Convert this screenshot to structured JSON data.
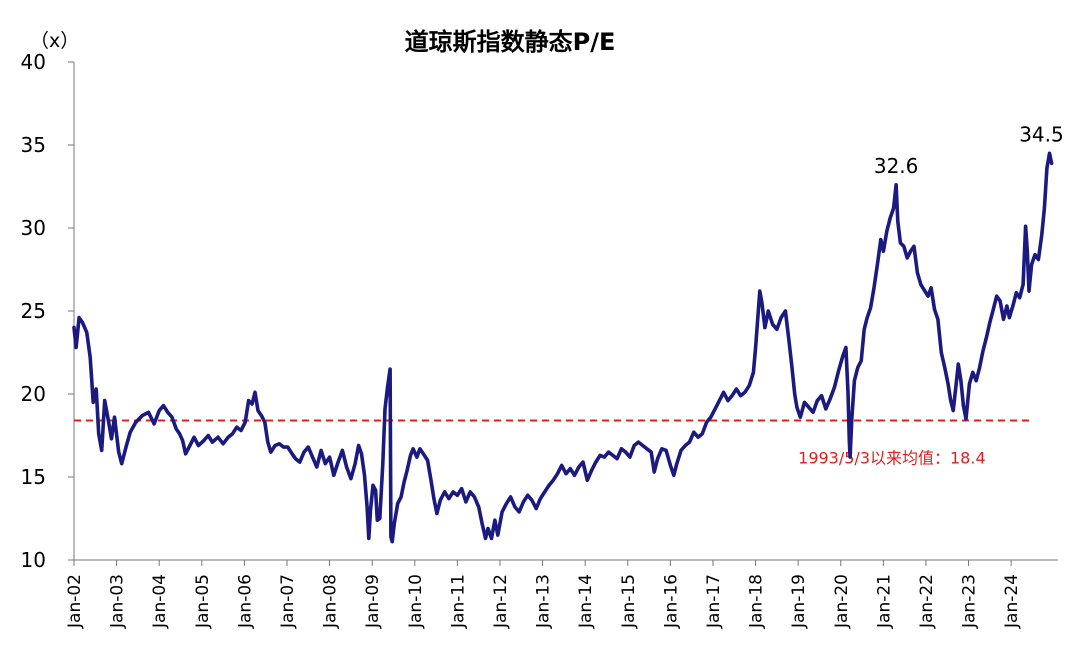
{
  "chart_data": {
    "type": "line",
    "title": "道琼斯指数静态P/E",
    "unit_label": "（x）",
    "ylim": [
      10,
      40
    ],
    "yticks": [
      10,
      15,
      20,
      25,
      30,
      35,
      40
    ],
    "x_tick_labels": [
      "Jan-02",
      "Jan-03",
      "Jan-04",
      "Jan-05",
      "Jan-06",
      "Jan-07",
      "Jan-08",
      "Jan-09",
      "Jan-10",
      "Jan-11",
      "Jan-12",
      "Jan-13",
      "Jan-14",
      "Jan-15",
      "Jan-16",
      "Jan-17",
      "Jan-18",
      "Jan-19",
      "Jan-20",
      "Jan-21",
      "Jan-22",
      "Jan-23",
      "Jan-24"
    ],
    "x_start_year": 2002,
    "x_end_year": 2024.95,
    "line_color": "#1a1a80",
    "mean_line_color": "#e02020",
    "mean_value": 18.4,
    "mean_label": "1993/5/3以来均值：18.4",
    "series": [
      {
        "points": [
          [
            2002.0,
            24.0
          ],
          [
            2002.05,
            22.8
          ],
          [
            2002.12,
            24.6
          ],
          [
            2002.2,
            24.3
          ],
          [
            2002.3,
            23.7
          ],
          [
            2002.38,
            22.2
          ],
          [
            2002.45,
            19.5
          ],
          [
            2002.52,
            20.3
          ],
          [
            2002.58,
            17.6
          ],
          [
            2002.65,
            16.6
          ],
          [
            2002.72,
            19.6
          ],
          [
            2002.8,
            18.5
          ],
          [
            2002.88,
            17.3
          ],
          [
            2002.95,
            18.6
          ],
          [
            2003.05,
            16.5
          ],
          [
            2003.12,
            15.8
          ],
          [
            2003.22,
            16.8
          ],
          [
            2003.32,
            17.7
          ],
          [
            2003.45,
            18.3
          ],
          [
            2003.6,
            18.7
          ],
          [
            2003.75,
            18.9
          ],
          [
            2003.88,
            18.2
          ],
          [
            2004.0,
            19.0
          ],
          [
            2004.1,
            19.3
          ],
          [
            2004.2,
            18.9
          ],
          [
            2004.3,
            18.6
          ],
          [
            2004.4,
            17.9
          ],
          [
            2004.48,
            17.6
          ],
          [
            2004.55,
            17.2
          ],
          [
            2004.62,
            16.4
          ],
          [
            2004.72,
            16.9
          ],
          [
            2004.82,
            17.4
          ],
          [
            2004.92,
            16.9
          ],
          [
            2005.05,
            17.2
          ],
          [
            2005.15,
            17.5
          ],
          [
            2005.25,
            17.1
          ],
          [
            2005.38,
            17.4
          ],
          [
            2005.5,
            17.0
          ],
          [
            2005.62,
            17.4
          ],
          [
            2005.72,
            17.6
          ],
          [
            2005.82,
            18.0
          ],
          [
            2005.92,
            17.8
          ],
          [
            2006.02,
            18.3
          ],
          [
            2006.1,
            19.6
          ],
          [
            2006.18,
            19.4
          ],
          [
            2006.25,
            20.1
          ],
          [
            2006.32,
            19.0
          ],
          [
            2006.4,
            18.7
          ],
          [
            2006.48,
            18.3
          ],
          [
            2006.55,
            17.1
          ],
          [
            2006.62,
            16.5
          ],
          [
            2006.72,
            16.9
          ],
          [
            2006.82,
            17.0
          ],
          [
            2006.92,
            16.8
          ],
          [
            2007.02,
            16.8
          ],
          [
            2007.12,
            16.4
          ],
          [
            2007.2,
            16.1
          ],
          [
            2007.3,
            15.9
          ],
          [
            2007.4,
            16.5
          ],
          [
            2007.5,
            16.8
          ],
          [
            2007.6,
            16.2
          ],
          [
            2007.7,
            15.6
          ],
          [
            2007.8,
            16.6
          ],
          [
            2007.9,
            15.8
          ],
          [
            2008.0,
            16.2
          ],
          [
            2008.1,
            15.1
          ],
          [
            2008.2,
            15.9
          ],
          [
            2008.3,
            16.6
          ],
          [
            2008.4,
            15.6
          ],
          [
            2008.5,
            14.9
          ],
          [
            2008.6,
            15.8
          ],
          [
            2008.68,
            16.9
          ],
          [
            2008.75,
            16.4
          ],
          [
            2008.82,
            15.1
          ],
          [
            2008.88,
            13.2
          ],
          [
            2008.92,
            11.3
          ],
          [
            2008.96,
            13.0
          ],
          [
            2009.02,
            14.5
          ],
          [
            2009.08,
            14.2
          ],
          [
            2009.12,
            12.4
          ],
          [
            2009.18,
            12.5
          ],
          [
            2009.25,
            15.8
          ],
          [
            2009.3,
            19.1
          ],
          [
            2009.36,
            20.4
          ],
          [
            2009.42,
            21.5
          ],
          [
            2009.44,
            11.4
          ],
          [
            2009.47,
            11.1
          ],
          [
            2009.52,
            12.2
          ],
          [
            2009.6,
            13.4
          ],
          [
            2009.68,
            13.8
          ],
          [
            2009.75,
            14.7
          ],
          [
            2009.82,
            15.4
          ],
          [
            2009.9,
            16.3
          ],
          [
            2009.96,
            16.7
          ],
          [
            2010.05,
            16.2
          ],
          [
            2010.12,
            16.7
          ],
          [
            2010.2,
            16.4
          ],
          [
            2010.3,
            16.0
          ],
          [
            2010.38,
            14.8
          ],
          [
            2010.45,
            13.7
          ],
          [
            2010.52,
            12.8
          ],
          [
            2010.6,
            13.6
          ],
          [
            2010.7,
            14.1
          ],
          [
            2010.8,
            13.7
          ],
          [
            2010.9,
            14.1
          ],
          [
            2011.0,
            13.9
          ],
          [
            2011.1,
            14.3
          ],
          [
            2011.2,
            13.5
          ],
          [
            2011.3,
            14.1
          ],
          [
            2011.4,
            13.8
          ],
          [
            2011.5,
            13.2
          ],
          [
            2011.58,
            12.2
          ],
          [
            2011.66,
            11.3
          ],
          [
            2011.72,
            11.9
          ],
          [
            2011.8,
            11.3
          ],
          [
            2011.88,
            12.4
          ],
          [
            2011.95,
            11.5
          ],
          [
            2012.05,
            12.9
          ],
          [
            2012.15,
            13.4
          ],
          [
            2012.25,
            13.8
          ],
          [
            2012.35,
            13.2
          ],
          [
            2012.45,
            12.9
          ],
          [
            2012.55,
            13.5
          ],
          [
            2012.65,
            13.9
          ],
          [
            2012.75,
            13.6
          ],
          [
            2012.85,
            13.1
          ],
          [
            2012.95,
            13.7
          ],
          [
            2013.05,
            14.1
          ],
          [
            2013.15,
            14.5
          ],
          [
            2013.25,
            14.8
          ],
          [
            2013.35,
            15.2
          ],
          [
            2013.45,
            15.7
          ],
          [
            2013.55,
            15.2
          ],
          [
            2013.65,
            15.5
          ],
          [
            2013.75,
            15.1
          ],
          [
            2013.85,
            15.6
          ],
          [
            2013.95,
            15.9
          ],
          [
            2014.05,
            14.8
          ],
          [
            2014.15,
            15.4
          ],
          [
            2014.25,
            15.9
          ],
          [
            2014.35,
            16.3
          ],
          [
            2014.45,
            16.2
          ],
          [
            2014.55,
            16.5
          ],
          [
            2014.65,
            16.3
          ],
          [
            2014.75,
            16.1
          ],
          [
            2014.85,
            16.7
          ],
          [
            2014.95,
            16.5
          ],
          [
            2015.05,
            16.2
          ],
          [
            2015.15,
            16.9
          ],
          [
            2015.25,
            17.1
          ],
          [
            2015.35,
            16.9
          ],
          [
            2015.45,
            16.7
          ],
          [
            2015.55,
            16.5
          ],
          [
            2015.62,
            15.3
          ],
          [
            2015.7,
            16.1
          ],
          [
            2015.8,
            16.7
          ],
          [
            2015.9,
            16.6
          ],
          [
            2016.0,
            15.7
          ],
          [
            2016.08,
            15.1
          ],
          [
            2016.15,
            15.8
          ],
          [
            2016.25,
            16.6
          ],
          [
            2016.35,
            16.9
          ],
          [
            2016.45,
            17.1
          ],
          [
            2016.55,
            17.7
          ],
          [
            2016.65,
            17.4
          ],
          [
            2016.75,
            17.6
          ],
          [
            2016.85,
            18.3
          ],
          [
            2016.95,
            18.6
          ],
          [
            2017.05,
            19.1
          ],
          [
            2017.15,
            19.6
          ],
          [
            2017.25,
            20.1
          ],
          [
            2017.35,
            19.6
          ],
          [
            2017.45,
            19.9
          ],
          [
            2017.55,
            20.3
          ],
          [
            2017.65,
            19.9
          ],
          [
            2017.75,
            20.1
          ],
          [
            2017.85,
            20.5
          ],
          [
            2017.95,
            21.3
          ],
          [
            2018.0,
            22.8
          ],
          [
            2018.05,
            24.5
          ],
          [
            2018.1,
            26.2
          ],
          [
            2018.15,
            25.5
          ],
          [
            2018.22,
            24.0
          ],
          [
            2018.3,
            25.0
          ],
          [
            2018.4,
            24.2
          ],
          [
            2018.5,
            23.9
          ],
          [
            2018.6,
            24.6
          ],
          [
            2018.7,
            25.0
          ],
          [
            2018.78,
            23.3
          ],
          [
            2018.85,
            21.7
          ],
          [
            2018.92,
            20.0
          ],
          [
            2018.97,
            19.2
          ],
          [
            2019.05,
            18.6
          ],
          [
            2019.15,
            19.5
          ],
          [
            2019.25,
            19.2
          ],
          [
            2019.35,
            18.9
          ],
          [
            2019.45,
            19.6
          ],
          [
            2019.55,
            19.9
          ],
          [
            2019.65,
            19.1
          ],
          [
            2019.75,
            19.7
          ],
          [
            2019.85,
            20.4
          ],
          [
            2019.95,
            21.4
          ],
          [
            2020.05,
            22.3
          ],
          [
            2020.12,
            22.8
          ],
          [
            2020.17,
            20.1
          ],
          [
            2020.2,
            17.2
          ],
          [
            2020.22,
            16.2
          ],
          [
            2020.26,
            18.5
          ],
          [
            2020.32,
            20.8
          ],
          [
            2020.4,
            21.6
          ],
          [
            2020.48,
            22.0
          ],
          [
            2020.55,
            23.9
          ],
          [
            2020.62,
            24.6
          ],
          [
            2020.7,
            25.2
          ],
          [
            2020.78,
            26.4
          ],
          [
            2020.86,
            27.8
          ],
          [
            2020.94,
            29.3
          ],
          [
            2021.0,
            28.6
          ],
          [
            2021.08,
            29.8
          ],
          [
            2021.16,
            30.6
          ],
          [
            2021.24,
            31.2
          ],
          [
            2021.3,
            32.6
          ],
          [
            2021.34,
            30.4
          ],
          [
            2021.4,
            29.1
          ],
          [
            2021.48,
            28.9
          ],
          [
            2021.56,
            28.2
          ],
          [
            2021.64,
            28.6
          ],
          [
            2021.72,
            28.9
          ],
          [
            2021.8,
            27.3
          ],
          [
            2021.88,
            26.6
          ],
          [
            2021.95,
            26.3
          ],
          [
            2022.05,
            25.9
          ],
          [
            2022.12,
            26.4
          ],
          [
            2022.2,
            25.1
          ],
          [
            2022.28,
            24.5
          ],
          [
            2022.36,
            22.5
          ],
          [
            2022.44,
            21.6
          ],
          [
            2022.52,
            20.6
          ],
          [
            2022.58,
            19.6
          ],
          [
            2022.64,
            19.0
          ],
          [
            2022.7,
            20.4
          ],
          [
            2022.76,
            21.8
          ],
          [
            2022.82,
            20.8
          ],
          [
            2022.88,
            19.3
          ],
          [
            2022.94,
            18.5
          ],
          [
            2023.02,
            20.6
          ],
          [
            2023.1,
            21.3
          ],
          [
            2023.18,
            20.8
          ],
          [
            2023.26,
            21.6
          ],
          [
            2023.34,
            22.6
          ],
          [
            2023.42,
            23.4
          ],
          [
            2023.5,
            24.3
          ],
          [
            2023.58,
            25.1
          ],
          [
            2023.66,
            25.9
          ],
          [
            2023.74,
            25.6
          ],
          [
            2023.82,
            24.5
          ],
          [
            2023.9,
            25.3
          ],
          [
            2023.96,
            24.6
          ],
          [
            2024.05,
            25.4
          ],
          [
            2024.12,
            26.1
          ],
          [
            2024.2,
            25.8
          ],
          [
            2024.28,
            26.6
          ],
          [
            2024.34,
            30.1
          ],
          [
            2024.38,
            28.6
          ],
          [
            2024.42,
            26.2
          ],
          [
            2024.48,
            27.8
          ],
          [
            2024.56,
            28.4
          ],
          [
            2024.64,
            28.1
          ],
          [
            2024.72,
            29.6
          ],
          [
            2024.78,
            31.2
          ],
          [
            2024.84,
            33.6
          ],
          [
            2024.9,
            34.5
          ],
          [
            2024.95,
            33.9
          ]
        ]
      }
    ],
    "annotations": [
      {
        "text": "32.6",
        "x": 2021.3,
        "y": 32.6
      },
      {
        "text": "34.5",
        "x": 2024.9,
        "y": 34.5
      }
    ]
  }
}
